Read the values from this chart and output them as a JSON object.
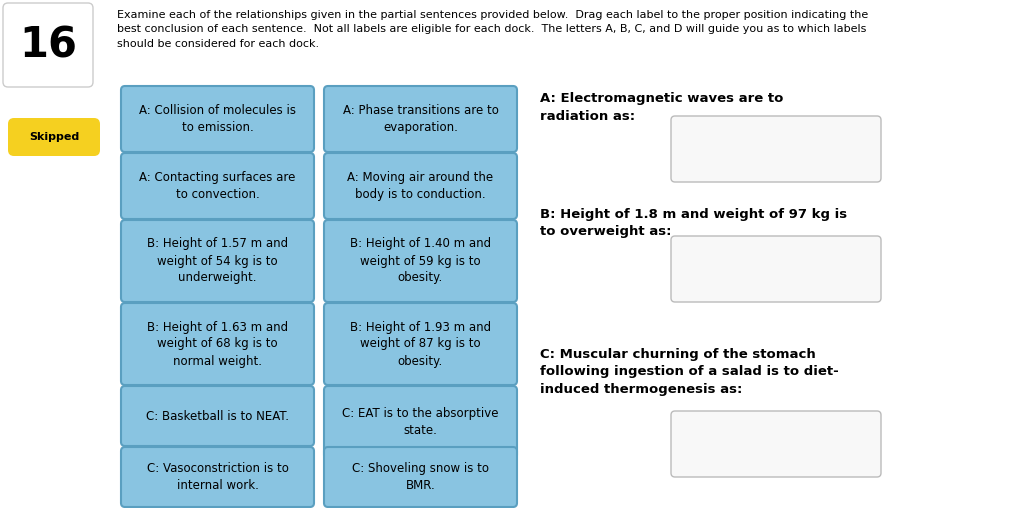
{
  "bg_color": "#ffffff",
  "header_number": "16",
  "header_text": "Examine each of the relationships given in the partial sentences provided below.  Drag each label to the proper position indicating the\nbest conclusion of each sentence.  Not all labels are eligible for each dock.  The letters A, B, C, and D will guide you as to which labels\nshould be considered for each dock.",
  "skipped_label": "Skipped",
  "skipped_color": "#f5d020",
  "left_col_cards": [
    "A: Collision of molecules is\nto emission.",
    "A: Contacting surfaces are\nto convection.",
    "B: Height of 1.57 m and\nweight of 54 kg is to\nunderweight.",
    "B: Height of 1.63 m and\nweight of 68 kg is to\nnormal weight.",
    "C: Basketball is to NEAT.",
    "C: Vasoconstriction is to\ninternal work."
  ],
  "right_col_cards": [
    "A: Phase transitions are to\nevaporation.",
    "A: Moving air around the\nbody is to conduction.",
    "B: Height of 1.40 m and\nweight of 59 kg is to\nobesity.",
    "B: Height of 1.93 m and\nweight of 87 kg is to\nobesity.",
    "C: EAT is to the absorptive\nstate.",
    "C: Shoveling snow is to\nBMR."
  ],
  "card_bg": "#89c4e1",
  "card_border": "#5a9fc0",
  "dock_labels": [
    "A: Electromagnetic waves are to\nradiation as:",
    "B: Height of 1.8 m and weight of 97 kg is\nto overweight as:",
    "C: Muscular churning of the stomach\nfollowing ingestion of a salad is to diet-\ninduced thermogenesis as:"
  ],
  "dock_box_color": "#f8f8f8",
  "dock_box_border": "#bbbbbb",
  "num_box_color": "#ffffff",
  "num_box_border": "#cccccc"
}
